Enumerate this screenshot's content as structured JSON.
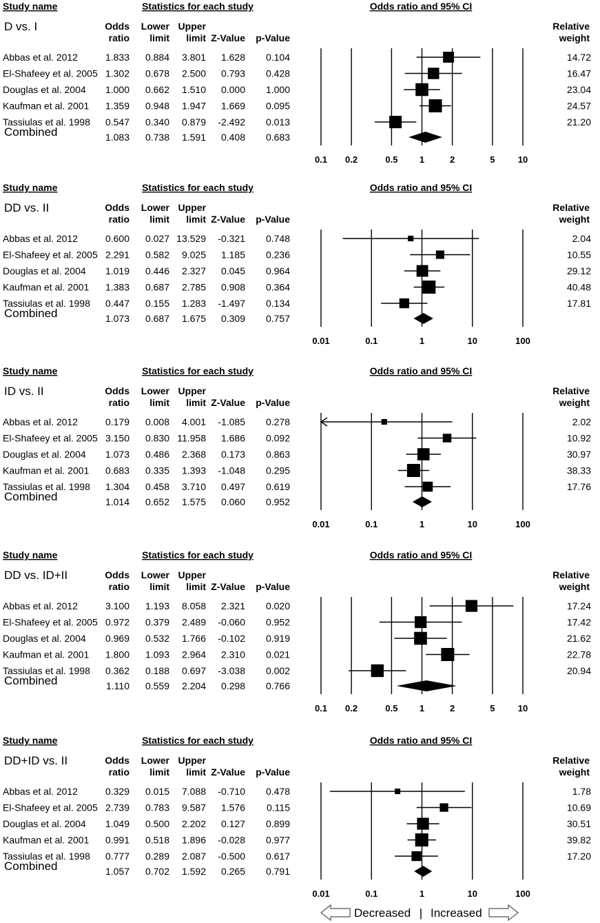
{
  "headers": {
    "study_name": "Study name",
    "statistics": "Statistics for each study",
    "or_ci": "Odds ratio and 95% CI",
    "col1": [
      "Odds",
      "ratio"
    ],
    "col2": [
      "Lower",
      "limit"
    ],
    "col3": [
      "Upper",
      "limit"
    ],
    "col4": [
      "Z-Value"
    ],
    "col5": [
      "p-Value"
    ],
    "col6": [
      "Relative",
      "weight"
    ]
  },
  "footer": {
    "decreased": "Decreased",
    "separator": "|",
    "increased": "Increased"
  },
  "chart_data": [
    {
      "type": "forest",
      "title": "D vs. I",
      "scale": "log",
      "xlim": [
        0.1,
        10
      ],
      "ticks": [
        "0.1",
        "0.2",
        "0.5",
        "1",
        "2",
        "5",
        "10"
      ],
      "studies": [
        {
          "name": "Abbas et al. 2012",
          "or": "1.833",
          "lower": "0.884",
          "upper": "3.801",
          "z": "1.628",
          "p": "0.104",
          "weight": "14.72"
        },
        {
          "name": "El-Shafeey et al. 2005",
          "or": "1.302",
          "lower": "0.678",
          "upper": "2.500",
          "z": "0.793",
          "p": "0.428",
          "weight": "16.47"
        },
        {
          "name": "Douglas et al. 2004",
          "or": "1.000",
          "lower": "0.662",
          "upper": "1.510",
          "z": "0.000",
          "p": "1.000",
          "weight": "23.04"
        },
        {
          "name": "Kaufman et al. 2001",
          "or": "1.359",
          "lower": "0.948",
          "upper": "1.947",
          "z": "1.669",
          "p": "0.095",
          "weight": "24.57"
        },
        {
          "name": "Tassiulas et al. 1998",
          "or": "0.547",
          "lower": "0.340",
          "upper": "0.879",
          "z": "-2.492",
          "p": "0.013",
          "weight": "21.20"
        }
      ],
      "combined": {
        "name": "Combined",
        "or": "1.083",
        "lower": "0.738",
        "upper": "1.591",
        "z": "0.408",
        "p": "0.683"
      }
    },
    {
      "type": "forest",
      "title": "DD vs. II",
      "scale": "log",
      "xlim": [
        0.01,
        100
      ],
      "ticks": [
        "0.01",
        "0.1",
        "1",
        "10",
        "100"
      ],
      "studies": [
        {
          "name": "Abbas et al. 2012",
          "or": "0.600",
          "lower": "0.027",
          "upper": "13.529",
          "z": "-0.321",
          "p": "0.748",
          "weight": "2.04"
        },
        {
          "name": "El-Shafeey et al. 2005",
          "or": "2.291",
          "lower": "0.582",
          "upper": "9.025",
          "z": "1.185",
          "p": "0.236",
          "weight": "10.55"
        },
        {
          "name": "Douglas et al. 2004",
          "or": "1.019",
          "lower": "0.446",
          "upper": "2.327",
          "z": "0.045",
          "p": "0.964",
          "weight": "29.12"
        },
        {
          "name": "Kaufman et al. 2001",
          "or": "1.383",
          "lower": "0.687",
          "upper": "2.785",
          "z": "0.908",
          "p": "0.364",
          "weight": "40.48"
        },
        {
          "name": "Tassiulas et al. 1998",
          "or": "0.447",
          "lower": "0.155",
          "upper": "1.283",
          "z": "-1.497",
          "p": "0.134",
          "weight": "17.81"
        }
      ],
      "combined": {
        "name": "Combined",
        "or": "1.073",
        "lower": "0.687",
        "upper": "1.675",
        "z": "0.309",
        "p": "0.757"
      }
    },
    {
      "type": "forest",
      "title": "ID vs. II",
      "scale": "log",
      "xlim": [
        0.01,
        100
      ],
      "ticks": [
        "0.01",
        "0.1",
        "1",
        "10",
        "100"
      ],
      "studies": [
        {
          "name": "Abbas et al. 2012",
          "or": "0.179",
          "lower": "0.008",
          "upper": "4.001",
          "z": "-1.085",
          "p": "0.278",
          "weight": "2.02"
        },
        {
          "name": "El-Shafeey et al. 2005",
          "or": "3.150",
          "lower": "0.830",
          "upper": "11.958",
          "z": "1.686",
          "p": "0.092",
          "weight": "10.92"
        },
        {
          "name": "Douglas et al. 2004",
          "or": "1.073",
          "lower": "0.486",
          "upper": "2.368",
          "z": "0.173",
          "p": "0.863",
          "weight": "30.97"
        },
        {
          "name": "Kaufman et al. 2001",
          "or": "0.683",
          "lower": "0.335",
          "upper": "1.393",
          "z": "-1.048",
          "p": "0.295",
          "weight": "38.33"
        },
        {
          "name": "Tassiulas et al. 1998",
          "or": "1.304",
          "lower": "0.458",
          "upper": "3.710",
          "z": "0.497",
          "p": "0.619",
          "weight": "17.76"
        }
      ],
      "combined": {
        "name": "Combined",
        "or": "1.014",
        "lower": "0.652",
        "upper": "1.575",
        "z": "0.060",
        "p": "0.952"
      }
    },
    {
      "type": "forest",
      "title": "DD vs. ID+II",
      "scale": "log",
      "xlim": [
        0.1,
        10
      ],
      "ticks": [
        "0.1",
        "0.2",
        "0.5",
        "1",
        "2",
        "5",
        "10"
      ],
      "studies": [
        {
          "name": "Abbas et al. 2012",
          "or": "3.100",
          "lower": "1.193",
          "upper": "8.058",
          "z": "2.321",
          "p": "0.020",
          "weight": "17.24"
        },
        {
          "name": "El-Shafeey et al. 2005",
          "or": "0.972",
          "lower": "0.379",
          "upper": "2.489",
          "z": "-0.060",
          "p": "0.952",
          "weight": "17.42"
        },
        {
          "name": "Douglas et al. 2004",
          "or": "0.969",
          "lower": "0.532",
          "upper": "1.766",
          "z": "-0.102",
          "p": "0.919",
          "weight": "21.62"
        },
        {
          "name": "Kaufman et al. 2001",
          "or": "1.800",
          "lower": "1.093",
          "upper": "2.964",
          "z": "2.310",
          "p": "0.021",
          "weight": "22.78"
        },
        {
          "name": "Tassiulas et al. 1998",
          "or": "0.362",
          "lower": "0.188",
          "upper": "0.697",
          "z": "-3.038",
          "p": "0.002",
          "weight": "20.94"
        }
      ],
      "combined": {
        "name": "Combined",
        "or": "1.110",
        "lower": "0.559",
        "upper": "2.204",
        "z": "0.298",
        "p": "0.766"
      }
    },
    {
      "type": "forest",
      "title": "DD+ID vs. II",
      "scale": "log",
      "xlim": [
        0.01,
        100
      ],
      "ticks": [
        "0.01",
        "0.1",
        "1",
        "10",
        "100"
      ],
      "studies": [
        {
          "name": "Abbas et al. 2012",
          "or": "0.329",
          "lower": "0.015",
          "upper": "7.088",
          "z": "-0.710",
          "p": "0.478",
          "weight": "1.78"
        },
        {
          "name": "El-Shafeey et al. 2005",
          "or": "2.739",
          "lower": "0.783",
          "upper": "9.587",
          "z": "1.576",
          "p": "0.115",
          "weight": "10.69"
        },
        {
          "name": "Douglas et al. 2004",
          "or": "1.049",
          "lower": "0.500",
          "upper": "2.202",
          "z": "0.127",
          "p": "0.899",
          "weight": "30.51"
        },
        {
          "name": "Kaufman et al. 2001",
          "or": "0.991",
          "lower": "0.518",
          "upper": "1.896",
          "z": "-0.028",
          "p": "0.977",
          "weight": "39.82"
        },
        {
          "name": "Tassiulas et al. 1998",
          "or": "0.777",
          "lower": "0.289",
          "upper": "2.087",
          "z": "-0.500",
          "p": "0.617",
          "weight": "17.20"
        }
      ],
      "combined": {
        "name": "Combined",
        "or": "1.057",
        "lower": "0.702",
        "upper": "1.592",
        "z": "0.265",
        "p": "0.791"
      }
    }
  ]
}
